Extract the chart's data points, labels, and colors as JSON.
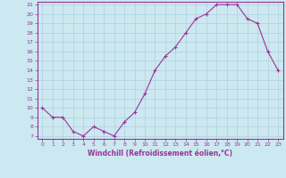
{
  "x": [
    0,
    1,
    2,
    3,
    4,
    5,
    6,
    7,
    8,
    9,
    10,
    11,
    12,
    13,
    14,
    15,
    16,
    17,
    18,
    19,
    20,
    21,
    22,
    23
  ],
  "y": [
    10,
    9,
    9,
    7.5,
    7,
    8,
    7.5,
    7,
    8.5,
    9.5,
    11.5,
    14,
    15.5,
    16.5,
    18,
    19.5,
    20,
    21,
    21,
    21,
    19.5,
    19,
    16,
    14
  ],
  "line_color": "#993399",
  "marker_color": "#993399",
  "bg_color": "#cce8f0",
  "grid_color": "#b0d0dc",
  "axis_color": "#993399",
  "xlabel": "Windchill (Refroidissement éolien,°C)",
  "ylim": [
    7,
    21
  ],
  "xlim": [
    -0.5,
    23.5
  ],
  "yticks": [
    7,
    8,
    9,
    10,
    11,
    12,
    13,
    14,
    15,
    16,
    17,
    18,
    19,
    20,
    21
  ],
  "xticks": [
    0,
    1,
    2,
    3,
    4,
    5,
    6,
    7,
    8,
    9,
    10,
    11,
    12,
    13,
    14,
    15,
    16,
    17,
    18,
    19,
    20,
    21,
    22,
    23
  ],
  "tick_fontsize": 4.5,
  "xlabel_fontsize": 5.5
}
